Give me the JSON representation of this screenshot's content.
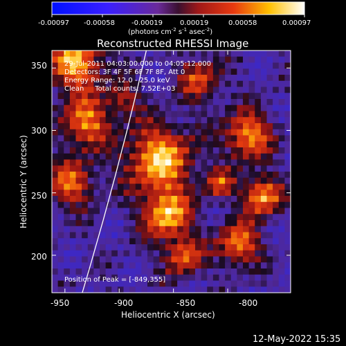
{
  "colorbar": {
    "tick_labels": [
      "-0.00097",
      "-0.00058",
      "-0.00019",
      "0.00019",
      "0.00058",
      "0.00097"
    ],
    "unit_prefix": "(photons cm",
    "unit_exp1": "-2",
    "unit_mid": " s",
    "unit_exp2": "-1",
    "unit_mid2": " asec",
    "unit_exp3": "-2",
    "unit_suffix": ")"
  },
  "plot": {
    "title": "Reconstructed RHESSI Image",
    "xlabel": "Heliocentric X (arcsec)",
    "ylabel": "Heliocentric Y (arcsec)",
    "x_ticks": [
      "-950",
      "-900",
      "-850",
      "-800"
    ],
    "y_ticks": [
      "350",
      "300",
      "250",
      "200"
    ]
  },
  "annotations": {
    "time": "29-Jul-2011 04:03:00.000 to 04:05:12.000",
    "detectors": "Detectors: 3F 4F 5F 6F 7F 8F, Att 0",
    "energy": "Energy Range: 12.0 - 25.0 keV",
    "clean": "Clean     Total counts: 7.52E+03",
    "peak": "Position of Peak = [-849,355]"
  },
  "footer": {
    "timestamp": "12-May-2022 15:35"
  },
  "chart_data": {
    "type": "heatmap",
    "title": "Reconstructed RHESSI Image",
    "xlabel": "Heliocentric X (arcsec)",
    "ylabel": "Heliocentric Y (arcsec)",
    "xlim": [
      -962,
      -742
    ],
    "ylim": [
      170,
      364
    ],
    "x_ticks": [
      -950,
      -900,
      -850,
      -800
    ],
    "y_ticks": [
      350,
      300,
      250,
      200
    ],
    "color_range": [
      -0.00097,
      0.00097
    ],
    "colormap": "blue-purple-red-yellow-white",
    "peak": [
      -849,
      355
    ],
    "limb_curve_x_data_at_ylim": [
      -934,
      -875
    ]
  }
}
